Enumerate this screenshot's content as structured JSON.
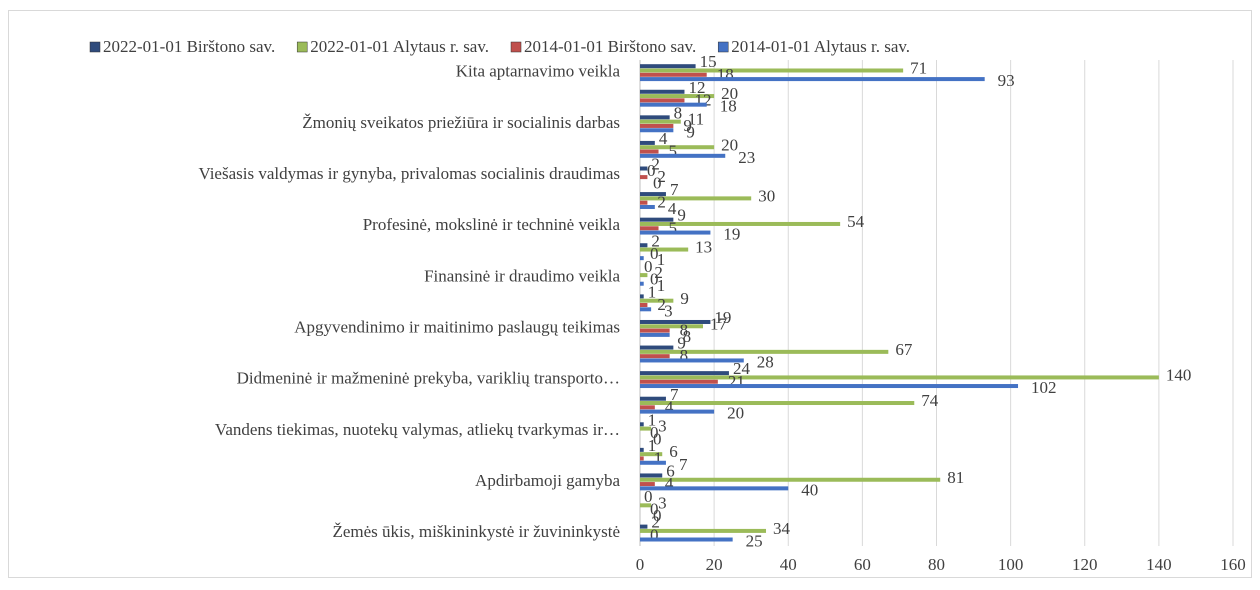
{
  "chart_data": {
    "type": "hbar",
    "categories": [
      "Kita aptarnavimo veikla",
      null,
      "Žmonių sveikatos priežiūra ir socialinis darbas",
      null,
      "Viešasis valdymas ir gynyba, privalomas socialinis draudimas",
      null,
      "Profesinė, mokslinė ir techninė veikla",
      null,
      "Finansinė ir draudimo veikla",
      null,
      "Apgyvendinimo ir maitinimo paslaugų teikimas",
      null,
      "Didmeninė ir mažmeninė prekyba, variklių transporto…",
      null,
      "Vandens tiekimas, nuotekų valymas, atliekų tvarkymas ir…",
      null,
      "Apdirbamoji gamyba",
      null,
      "Žemės ūkis, miškininkystė ir žuvininkystė"
    ],
    "series": [
      {
        "name": "2022-01-01 Birštono sav.",
        "color": "#2f4b7c",
        "values": [
          15,
          12,
          8,
          4,
          2,
          7,
          9,
          2,
          0,
          1,
          19,
          9,
          24,
          7,
          1,
          1,
          6,
          0,
          2
        ]
      },
      {
        "name": "2022-01-01 Alytaus r. sav.",
        "color": "#9bbb59",
        "values": [
          71,
          20,
          11,
          20,
          0,
          30,
          54,
          13,
          2,
          9,
          17,
          67,
          140,
          74,
          3,
          6,
          81,
          3,
          34
        ]
      },
      {
        "name": "2014-01-01 Birštono sav.",
        "color": "#c0504d",
        "values": [
          18,
          12,
          9,
          5,
          2,
          2,
          5,
          0,
          0,
          2,
          8,
          8,
          21,
          4,
          0,
          1,
          4,
          0,
          0
        ]
      },
      {
        "name": "2014-01-01 Alytaus r. sav.",
        "color": "#4472c4",
        "values": [
          93,
          18,
          9,
          23,
          0,
          4,
          19,
          1,
          1,
          3,
          8,
          28,
          102,
          20,
          0,
          7,
          40,
          0,
          25
        ]
      }
    ],
    "xlim": [
      0,
      160
    ],
    "xticks": [
      0,
      20,
      40,
      60,
      80,
      100,
      120,
      140,
      160
    ],
    "grid": true,
    "legend": "top"
  }
}
